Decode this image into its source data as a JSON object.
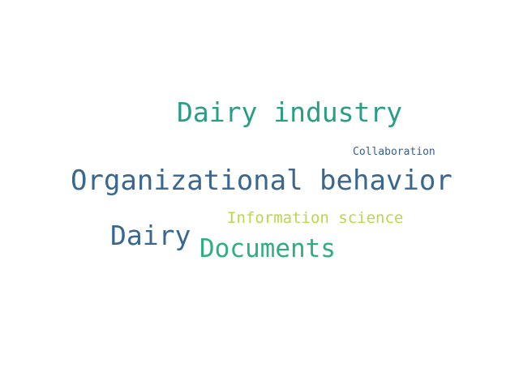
{
  "word_cloud": {
    "words": [
      {
        "text": "Dairy industry",
        "color": "#2a9d86"
      },
      {
        "text": "Collaboration",
        "color": "#3b5e8c"
      },
      {
        "text": "Organizational behavior",
        "color": "#3a6790"
      },
      {
        "text": "Information science",
        "color": "#b8d94a"
      },
      {
        "text": "Dairy",
        "color": "#3a6790"
      },
      {
        "text": "Documents",
        "color": "#2fae84"
      }
    ]
  }
}
